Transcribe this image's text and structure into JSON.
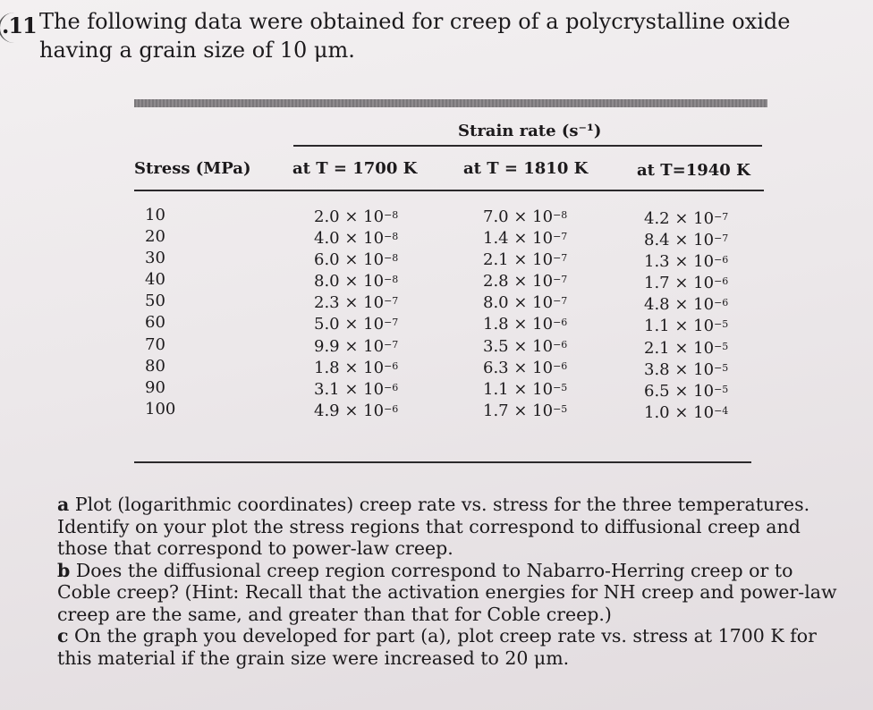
{
  "problem": {
    "number": ".11",
    "intro": "The following data were obtained for creep of a polycrystalline oxide having a grain size of 10 μm."
  },
  "table": {
    "group_header": "Strain rate (s⁻¹)",
    "columns": [
      "Stress (MPa)",
      "at T = 1700 K",
      "at T = 1810 K",
      "at T=1940 K"
    ],
    "rows": [
      {
        "stress": "10",
        "t1700": [
          "2.0 × 10",
          "−8"
        ],
        "t1810": [
          "7.0 × 10",
          "−8"
        ],
        "t1940": [
          "4.2 × 10",
          "−7"
        ]
      },
      {
        "stress": "20",
        "t1700": [
          "4.0 × 10",
          "−8"
        ],
        "t1810": [
          "1.4 × 10",
          "−7"
        ],
        "t1940": [
          "8.4 × 10",
          "−7"
        ]
      },
      {
        "stress": "30",
        "t1700": [
          "6.0 × 10",
          "−8"
        ],
        "t1810": [
          "2.1 × 10",
          "−7"
        ],
        "t1940": [
          "1.3 × 10",
          "−6"
        ]
      },
      {
        "stress": "40",
        "t1700": [
          "8.0 × 10",
          "−8"
        ],
        "t1810": [
          "2.8 × 10",
          "−7"
        ],
        "t1940": [
          "1.7 × 10",
          "−6"
        ]
      },
      {
        "stress": "50",
        "t1700": [
          "2.3 × 10",
          "−7"
        ],
        "t1810": [
          "8.0 × 10",
          "−7"
        ],
        "t1940": [
          "4.8 × 10",
          "−6"
        ]
      },
      {
        "stress": "60",
        "t1700": [
          "5.0 × 10",
          "−7"
        ],
        "t1810": [
          "1.8 × 10",
          "−6"
        ],
        "t1940": [
          "1.1 × 10",
          "−5"
        ]
      },
      {
        "stress": "70",
        "t1700": [
          "9.9 × 10",
          "−7"
        ],
        "t1810": [
          "3.5 × 10",
          "−6"
        ],
        "t1940": [
          "2.1 × 10",
          "−5"
        ]
      },
      {
        "stress": "80",
        "t1700": [
          "1.8 × 10",
          "−6"
        ],
        "t1810": [
          "6.3 × 10",
          "−6"
        ],
        "t1940": [
          "3.8 × 10",
          "−5"
        ]
      },
      {
        "stress": "90",
        "t1700": [
          "3.1 × 10",
          "−6"
        ],
        "t1810": [
          "1.1 × 10",
          "−5"
        ],
        "t1940": [
          "6.5 × 10",
          "−5"
        ]
      },
      {
        "stress": "100",
        "t1700": [
          "4.9 × 10",
          "−6"
        ],
        "t1810": [
          "1.7 × 10",
          "−5"
        ],
        "t1940": [
          "1.0 × 10",
          "−4"
        ]
      }
    ]
  },
  "questions": [
    {
      "letter": "a",
      "text": "Plot (logarithmic coordinates) creep rate vs. stress for the three temperatures. Identify on your plot the stress regions that correspond to diffusional creep and those that correspond to power-law creep."
    },
    {
      "letter": "b",
      "text": "Does the diffusional creep region correspond to Nabarro-Herring creep or to Coble creep? (Hint: Recall that the activation energies for NH creep and power-law creep are the same, and greater than that for Coble creep.)"
    },
    {
      "letter": "c",
      "text": "On the graph you developed for part (a), plot creep rate vs. stress at 1700 K for this material if the grain size were increased to 20 μm."
    }
  ]
}
